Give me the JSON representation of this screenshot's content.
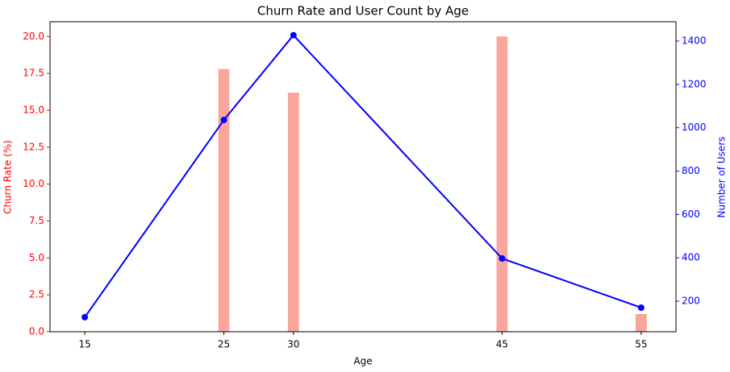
{
  "chart_data": {
    "type": "bar-line",
    "title": "Churn Rate and User Count by Age",
    "x_label": "Age",
    "y_label": "Churn Rate (%)",
    "y2_label": "Number of Users",
    "x": [
      15,
      25,
      30,
      45,
      55
    ],
    "xlim": [
      12.5,
      57.5
    ],
    "xticks": [
      15,
      25,
      30,
      45,
      55
    ],
    "ylim": [
      0,
      21
    ],
    "yticks": [
      {
        "value": 0,
        "label": "0.0"
      },
      {
        "value": 2.5,
        "label": "2.5"
      },
      {
        "value": 5,
        "label": "5.0"
      },
      {
        "value": 7.5,
        "label": "7.5"
      },
      {
        "value": 10,
        "label": "10.0"
      },
      {
        "value": 12.5,
        "label": "12.5"
      },
      {
        "value": 15,
        "label": "15.0"
      },
      {
        "value": 17.5,
        "label": "17.5"
      },
      {
        "value": 20,
        "label": "20.0"
      }
    ],
    "y2lim": [
      59,
      1489
    ],
    "y2ticks": [
      200,
      400,
      600,
      800,
      1000,
      1200,
      1400
    ],
    "series": [
      {
        "name": "Churn Rate (%)",
        "type": "bar",
        "color": "#fa8072",
        "values": [
          0,
          17.8,
          16.2,
          20.0,
          1.2
        ]
      },
      {
        "name": "Number of Users",
        "type": "line",
        "axis": "y2",
        "color": "#0000ff",
        "values": [
          126,
          1036,
          1427,
          397,
          170
        ]
      }
    ]
  }
}
